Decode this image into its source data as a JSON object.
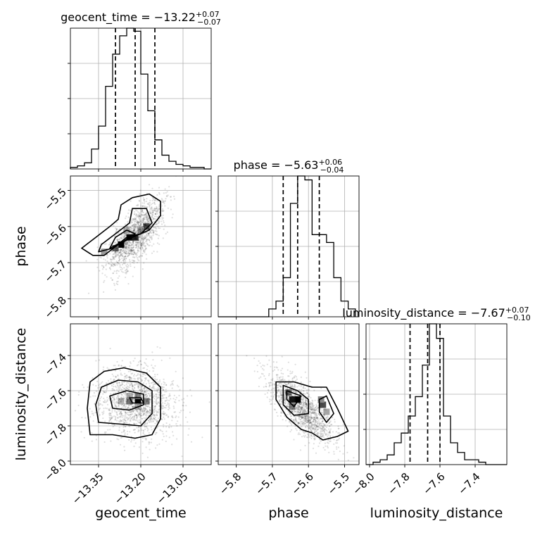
{
  "chart_data": {
    "type": "corner",
    "parameters": [
      "geocent_time",
      "phase",
      "luminosity_distance"
    ],
    "titles": [
      {
        "name": "geocent_time",
        "median": "−13.22",
        "upper": "+0.07",
        "lower": "−0.07"
      },
      {
        "name": "phase",
        "median": "−5.63",
        "upper": "+0.06",
        "lower": "−0.04"
      },
      {
        "name": "luminosity_distance",
        "median": "−7.67",
        "upper": "+0.07",
        "lower": "−0.10"
      }
    ],
    "axes": {
      "geocent_time": {
        "range": [
          -13.45,
          -12.95
        ],
        "ticks": [
          -13.35,
          -13.2,
          -13.05
        ],
        "tick_labels": [
          "−13.35",
          "−13.20",
          "−13.05"
        ]
      },
      "phase": {
        "range": [
          -5.85,
          -5.46
        ],
        "ticks": [
          -5.8,
          -5.7,
          -5.6,
          -5.5
        ],
        "tick_labels": [
          "−5.8",
          "−5.7",
          "−5.6",
          "−5.5"
        ]
      },
      "luminosity_distance": {
        "range": [
          -8.02,
          -7.22
        ],
        "ticks": [
          -8.0,
          -7.8,
          -7.6,
          -7.4
        ],
        "tick_labels": [
          "−8.0",
          "−7.8",
          "−7.6",
          "−7.4"
        ]
      }
    },
    "histograms": [
      {
        "parameter": "geocent_time",
        "bin_edges": [
          -13.45,
          -13.425,
          -13.4,
          -13.375,
          -13.35,
          -13.325,
          -13.3,
          -13.275,
          -13.25,
          -13.225,
          -13.2,
          -13.175,
          -13.15,
          -13.125,
          -13.1,
          -13.075,
          -13.05,
          -13.025,
          -13.0,
          -12.975,
          -12.95
        ],
        "counts": [
          1,
          2,
          4,
          13,
          28,
          54,
          75,
          87,
          92,
          90,
          62,
          38,
          19,
          9,
          5,
          3,
          2,
          1,
          1,
          0
        ],
        "quantiles": [
          -13.29,
          -13.22,
          -13.15
        ]
      },
      {
        "parameter": "phase",
        "bin_edges": [
          -5.85,
          -5.83,
          -5.81,
          -5.79,
          -5.77,
          -5.75,
          -5.73,
          -5.71,
          -5.69,
          -5.67,
          -5.65,
          -5.63,
          -5.61,
          -5.59,
          -5.57,
          -5.55,
          -5.53,
          -5.51,
          -5.49,
          -5.47
        ],
        "counts": [
          0,
          0,
          0,
          0,
          0,
          0,
          0,
          2,
          4,
          10,
          29,
          36,
          35,
          21,
          21,
          19,
          10,
          4,
          2
        ],
        "quantiles": [
          -5.67,
          -5.63,
          -5.57
        ]
      },
      {
        "parameter": "luminosity_distance",
        "bin_edges": [
          -8.02,
          -7.98,
          -7.94,
          -7.9,
          -7.86,
          -7.82,
          -7.78,
          -7.74,
          -7.7,
          -7.66,
          -7.62,
          -7.58,
          -7.54,
          -7.5,
          -7.46,
          -7.42,
          -7.38,
          -7.34,
          -7.3,
          -7.26,
          -7.22
        ],
        "counts": [
          0,
          1,
          2,
          4,
          9,
          13,
          20,
          28,
          41,
          58,
          52,
          20,
          9,
          5,
          2,
          2,
          1,
          0,
          0,
          0
        ],
        "quantiles": [
          -7.77,
          -7.67,
          -7.6
        ]
      }
    ],
    "contours": [
      {
        "x": "geocent_time",
        "y": "phase",
        "levels": [
          [
            [
              -13.37,
              -5.68
            ],
            [
              -13.33,
              -5.68
            ],
            [
              -13.28,
              -5.65
            ],
            [
              -13.23,
              -5.63
            ],
            [
              -13.17,
              -5.61
            ],
            [
              -13.13,
              -5.57
            ],
            [
              -13.13,
              -5.53
            ],
            [
              -13.17,
              -5.51
            ],
            [
              -13.23,
              -5.52
            ],
            [
              -13.27,
              -5.54
            ],
            [
              -13.28,
              -5.58
            ],
            [
              -13.31,
              -5.6
            ],
            [
              -13.36,
              -5.63
            ],
            [
              -13.41,
              -5.66
            ]
          ],
          [
            [
              -13.35,
              -5.67
            ],
            [
              -13.3,
              -5.66
            ],
            [
              -13.25,
              -5.63
            ],
            [
              -13.2,
              -5.62
            ],
            [
              -13.16,
              -5.59
            ],
            [
              -13.18,
              -5.55
            ],
            [
              -13.23,
              -5.55
            ],
            [
              -13.24,
              -5.59
            ],
            [
              -13.29,
              -5.62
            ],
            [
              -13.34,
              -5.65
            ]
          ],
          [
            [
              -13.31,
              -5.66
            ],
            [
              -13.26,
              -5.64
            ],
            [
              -13.22,
              -5.62
            ],
            [
              -13.25,
              -5.61
            ],
            [
              -13.29,
              -5.63
            ]
          ]
        ],
        "density_cells": [
          [
            -13.27,
            -5.65,
            1.0
          ],
          [
            -13.24,
            -5.63,
            0.95
          ],
          [
            -13.22,
            -5.63,
            0.8
          ],
          [
            -13.29,
            -5.66,
            0.6
          ],
          [
            -13.18,
            -5.6,
            0.7
          ],
          [
            -13.33,
            -5.67,
            0.4
          ],
          [
            -13.2,
            -5.61,
            0.35
          ],
          [
            -13.25,
            -5.61,
            0.3
          ]
        ]
      },
      {
        "x": "geocent_time",
        "y": "luminosity_distance",
        "levels": [
          [
            [
              -13.38,
              -7.85
            ],
            [
              -13.3,
              -7.85
            ],
            [
              -13.22,
              -7.87
            ],
            [
              -13.16,
              -7.85
            ],
            [
              -13.13,
              -7.76
            ],
            [
              -13.13,
              -7.58
            ],
            [
              -13.18,
              -7.5
            ],
            [
              -13.26,
              -7.47
            ],
            [
              -13.33,
              -7.49
            ],
            [
              -13.38,
              -7.55
            ],
            [
              -13.39,
              -7.7
            ]
          ],
          [
            [
              -13.35,
              -7.78
            ],
            [
              -13.27,
              -7.79
            ],
            [
              -13.2,
              -7.8
            ],
            [
              -13.16,
              -7.73
            ],
            [
              -13.16,
              -7.6
            ],
            [
              -13.21,
              -7.55
            ],
            [
              -13.28,
              -7.54
            ],
            [
              -13.34,
              -7.58
            ],
            [
              -13.36,
              -7.68
            ]
          ],
          [
            [
              -13.3,
              -7.7
            ],
            [
              -13.24,
              -7.71
            ],
            [
              -13.19,
              -7.68
            ],
            [
              -13.19,
              -7.62
            ],
            [
              -13.25,
              -7.6
            ],
            [
              -13.31,
              -7.63
            ]
          ],
          [
            [
              -13.23,
              -7.67
            ],
            [
              -13.19,
              -7.67
            ],
            [
              -13.2,
              -7.64
            ],
            [
              -13.24,
              -7.64
            ]
          ]
        ],
        "density_cells": [
          [
            -13.21,
            -7.66,
            1.0
          ],
          [
            -13.24,
            -7.66,
            0.55
          ],
          [
            -13.18,
            -7.66,
            0.5
          ],
          [
            -13.21,
            -7.63,
            0.45
          ],
          [
            -13.27,
            -7.66,
            0.3
          ],
          [
            -13.24,
            -7.63,
            0.3
          ],
          [
            -13.21,
            -7.69,
            0.3
          ]
        ]
      },
      {
        "x": "phase",
        "y": "luminosity_distance",
        "levels": [
          [
            [
              -5.69,
              -7.55
            ],
            [
              -5.64,
              -7.55
            ],
            [
              -5.59,
              -7.58
            ],
            [
              -5.55,
              -7.58
            ],
            [
              -5.52,
              -7.7
            ],
            [
              -5.49,
              -7.83
            ],
            [
              -5.52,
              -7.86
            ],
            [
              -5.56,
              -7.88
            ],
            [
              -5.59,
              -7.84
            ],
            [
              -5.62,
              -7.82
            ],
            [
              -5.66,
              -7.75
            ],
            [
              -5.69,
              -7.65
            ]
          ],
          [
            [
              -5.67,
              -7.57
            ],
            [
              -5.63,
              -7.6
            ],
            [
              -5.6,
              -7.65
            ],
            [
              -5.6,
              -7.73
            ],
            [
              -5.64,
              -7.74
            ],
            [
              -5.67,
              -7.68
            ]
          ],
          [
            [
              -5.66,
              -7.6
            ],
            [
              -5.62,
              -7.63
            ],
            [
              -5.64,
              -7.69
            ],
            [
              -5.66,
              -7.65
            ]
          ],
          [
            [
              -5.57,
              -7.65
            ],
            [
              -5.55,
              -7.63
            ],
            [
              -5.53,
              -7.73
            ],
            [
              -5.55,
              -7.78
            ],
            [
              -5.57,
              -7.72
            ]
          ]
        ],
        "density_cells": [
          [
            -5.63,
            -7.65,
            1.0
          ],
          [
            -5.645,
            -7.65,
            0.9
          ],
          [
            -5.655,
            -7.61,
            0.55
          ],
          [
            -5.645,
            -7.69,
            0.5
          ],
          [
            -5.56,
            -7.68,
            0.7
          ],
          [
            -5.565,
            -7.65,
            0.45
          ],
          [
            -5.55,
            -7.72,
            0.35
          ]
        ]
      }
    ]
  }
}
